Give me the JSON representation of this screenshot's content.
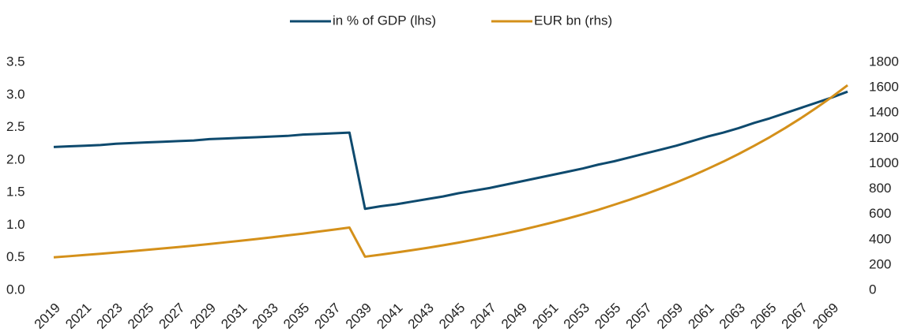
{
  "chart_data": {
    "type": "line",
    "x": [
      2019,
      2020,
      2021,
      2022,
      2023,
      2024,
      2025,
      2026,
      2027,
      2028,
      2029,
      2030,
      2031,
      2032,
      2033,
      2034,
      2035,
      2036,
      2037,
      2038,
      2039,
      2040,
      2041,
      2042,
      2043,
      2044,
      2045,
      2046,
      2047,
      2048,
      2049,
      2050,
      2051,
      2052,
      2053,
      2054,
      2055,
      2056,
      2057,
      2058,
      2059,
      2060,
      2061,
      2062,
      2063,
      2064,
      2065,
      2066,
      2067,
      2068,
      2069,
      2070
    ],
    "xlim": [
      2019,
      2070
    ],
    "xticks": [
      2019,
      2021,
      2023,
      2025,
      2027,
      2029,
      2031,
      2033,
      2035,
      2037,
      2039,
      2041,
      2043,
      2045,
      2047,
      2049,
      2051,
      2053,
      2055,
      2057,
      2059,
      2061,
      2063,
      2065,
      2067,
      2069
    ],
    "ylim": [
      0,
      3.5
    ],
    "yticks": [
      {
        "value": 0,
        "label": "0.0"
      },
      0.5,
      {
        "value": 1,
        "label": "1.0"
      },
      1.5,
      {
        "value": 2,
        "label": "2.0"
      },
      2.5,
      {
        "value": 3,
        "label": "3.0"
      },
      3.5
    ],
    "y2lim": [
      0,
      1800
    ],
    "y2ticks": [
      0,
      200,
      400,
      600,
      800,
      1000,
      1200,
      1400,
      1600,
      1800
    ],
    "legend": "top",
    "series": [
      {
        "name": "in % of GDP (lhs)",
        "color": "#0e4a6e",
        "values": [
          2.2,
          2.21,
          2.22,
          2.23,
          2.25,
          2.26,
          2.27,
          2.28,
          2.29,
          2.3,
          2.32,
          2.33,
          2.34,
          2.35,
          2.36,
          2.37,
          2.39,
          2.4,
          2.41,
          2.42,
          1.25,
          1.29,
          1.32,
          1.36,
          1.4,
          1.44,
          1.49,
          1.53,
          1.57,
          1.62,
          1.67,
          1.72,
          1.77,
          1.82,
          1.87,
          1.93,
          1.98,
          2.04,
          2.1,
          2.16,
          2.22,
          2.29,
          2.36,
          2.42,
          2.49,
          2.57,
          2.64,
          2.72,
          2.8,
          2.88,
          2.96,
          3.05
        ]
      },
      {
        "name": "EUR bn (rhs)",
        "color": "#d4901a",
        "axis": "y2",
        "values": [
          260,
          269,
          279,
          288,
          298,
          308,
          319,
          330,
          341,
          353,
          365,
          378,
          391,
          404,
          418,
          433,
          447,
          463,
          479,
          495,
          265,
          281,
          298,
          316,
          335,
          355,
          376,
          399,
          423,
          448,
          475,
          504,
          534,
          566,
          600,
          636,
          675,
          715,
          758,
          804,
          852,
          903,
          958,
          1015,
          1076,
          1141,
          1209,
          1282,
          1359,
          1441,
          1527,
          1619
        ]
      }
    ]
  }
}
